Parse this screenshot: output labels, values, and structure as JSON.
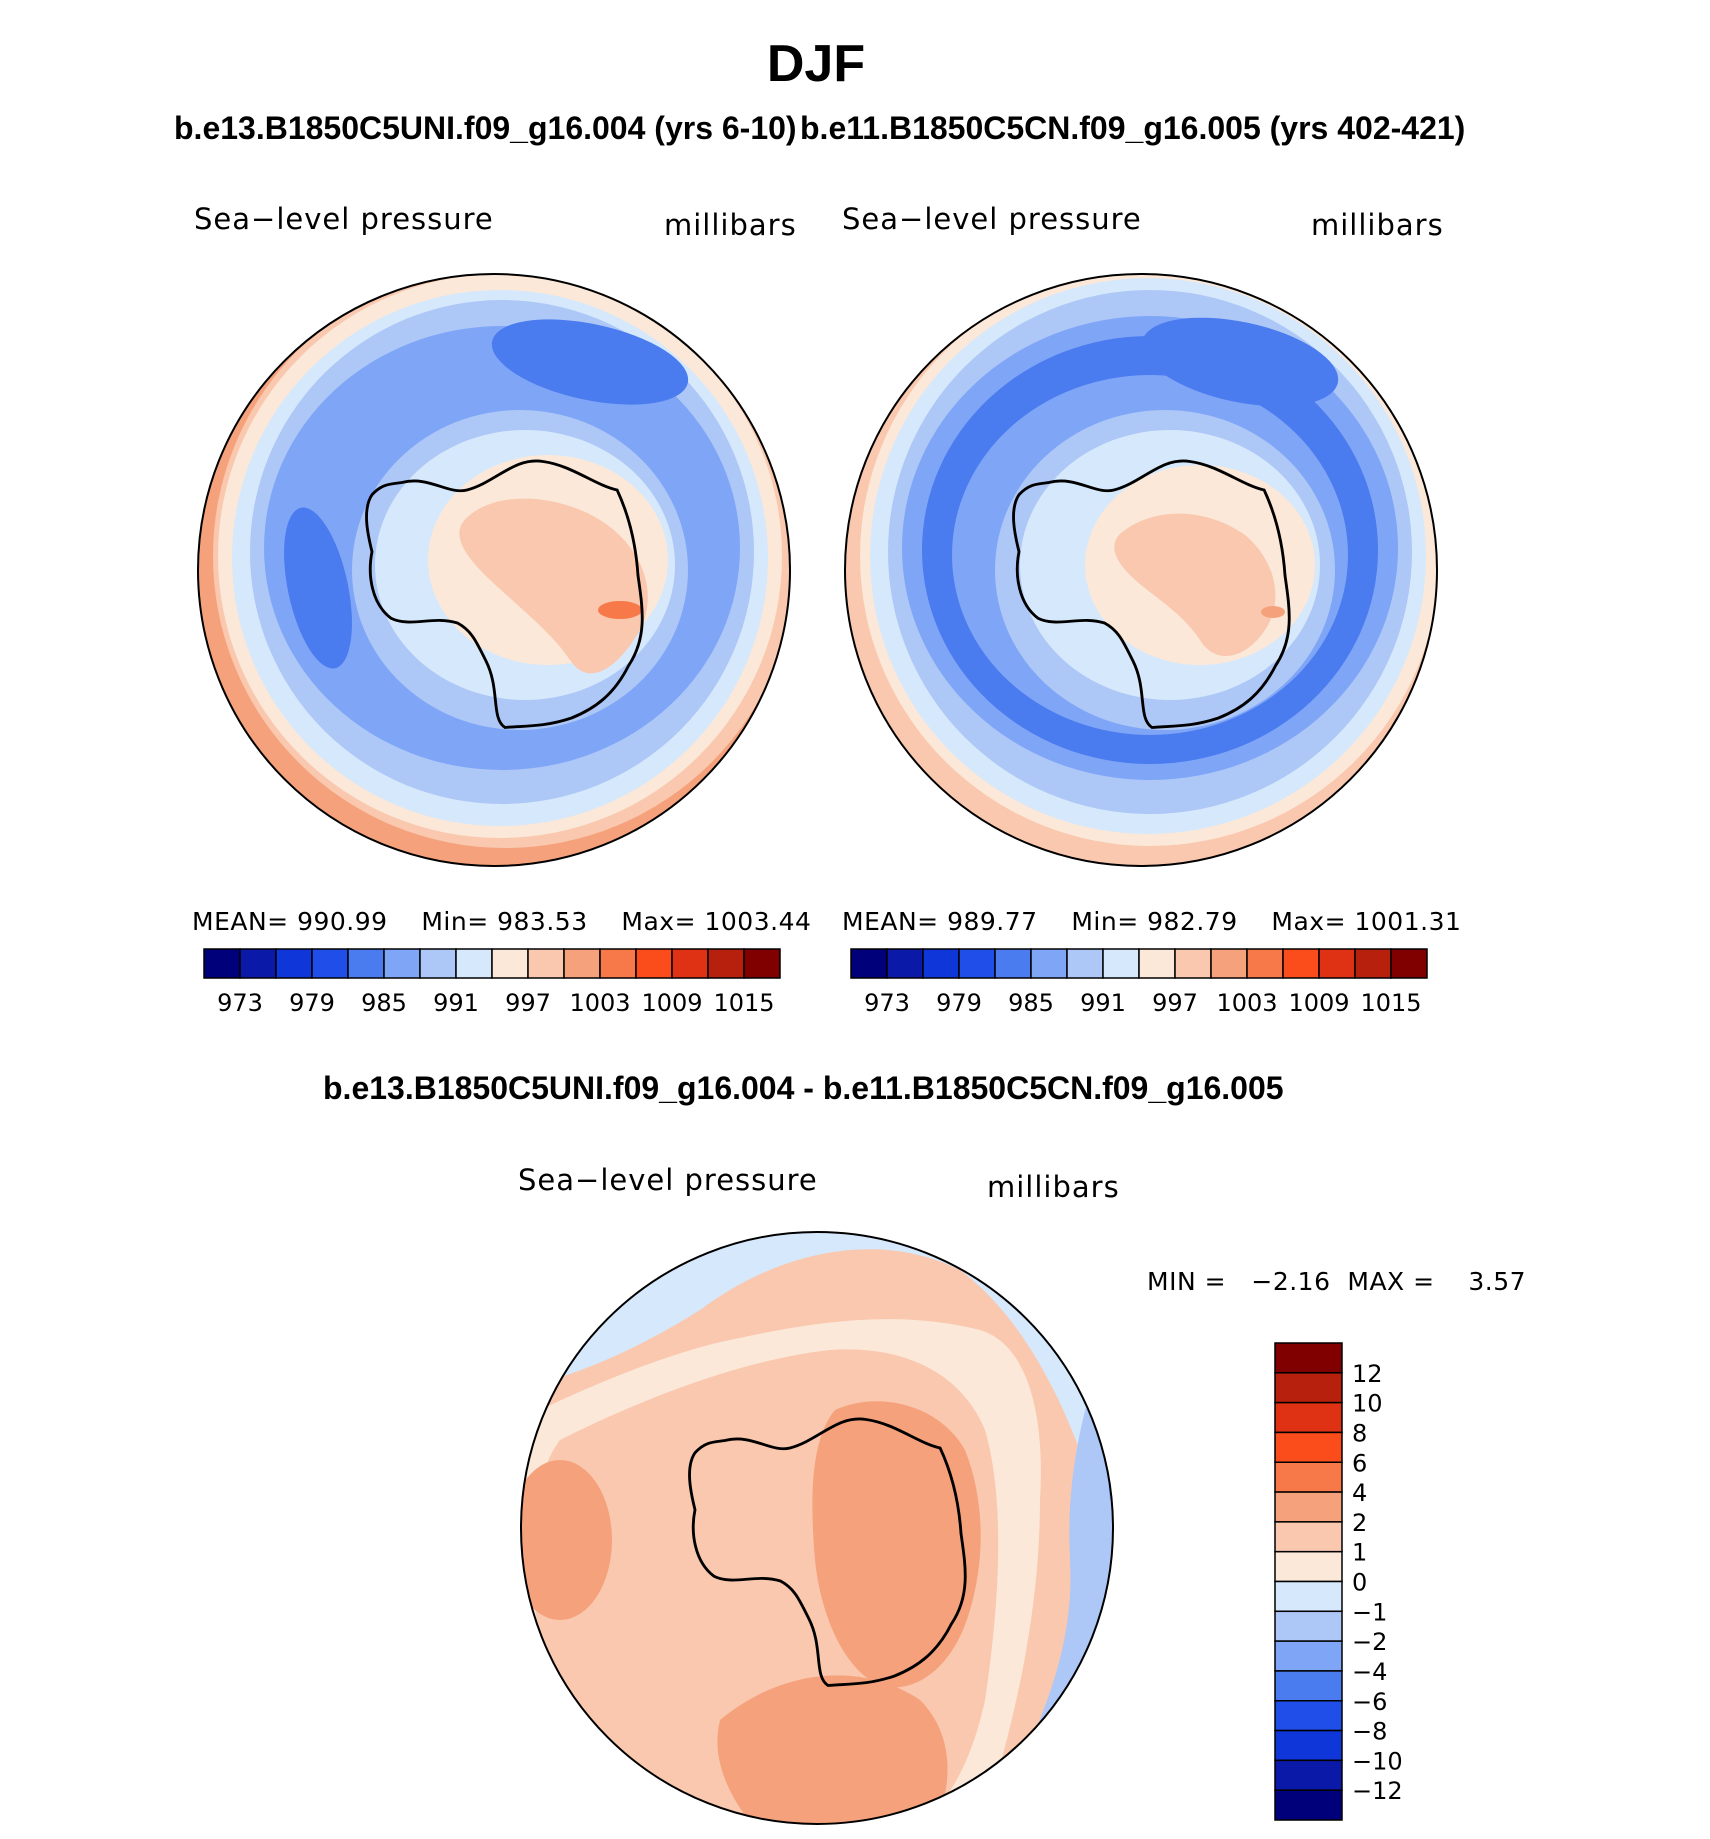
{
  "figure": {
    "season": "DJF",
    "diff_title": "b.e13.B1850C5UNI.f09_g16.004 - b.e11.B1850C5CN.f09_g16.005"
  },
  "panels": [
    {
      "title": "b.e13.B1850C5UNI.f09_g16.004 (yrs 6-10)",
      "variable": "Sea−level  pressure",
      "units": "millibars",
      "stats": {
        "mean_label": "MEAN=",
        "mean": "990.99",
        "min_label": "Min=",
        "min": "983.53",
        "max_label": "Max=",
        "max": "1003.44"
      }
    },
    {
      "title": "b.e11.B1850C5CN.f09_g16.005 (yrs 402-421)",
      "variable": "Sea−level  pressure",
      "units": "millibars",
      "stats": {
        "mean_label": "MEAN=",
        "mean": "989.77",
        "min_label": "Min=",
        "min": "982.79",
        "max_label": "Max=",
        "max": "1001.31"
      }
    },
    {
      "variable": "Sea−level  pressure",
      "units": "millibars",
      "minmax_text": "MIN =   −2.16  MAX =    3.57"
    }
  ],
  "colorbar_main": {
    "colors": [
      "#00007a",
      "#0a19a8",
      "#0e36d8",
      "#1f4fe8",
      "#4a7bef",
      "#7fa5f7",
      "#adc7f7",
      "#d6e8fb",
      "#fbe8d8",
      "#f9c8ae",
      "#f5a27c",
      "#f77848",
      "#fb4c1c",
      "#df3214",
      "#b8200e",
      "#800000"
    ],
    "labels": [
      "973",
      "979",
      "985",
      "991",
      "997",
      "1003",
      "1009",
      "1015"
    ]
  },
  "colorbar_diff": {
    "colors": [
      "#800000",
      "#b8200e",
      "#df3214",
      "#fb4c1c",
      "#f77848",
      "#f5a27c",
      "#f9c8ae",
      "#fbe8d8",
      "#d6e8fb",
      "#adc7f7",
      "#7fa5f7",
      "#4a7bef",
      "#1f4fe8",
      "#0e36d8",
      "#0a19a8",
      "#00007a"
    ],
    "labels": [
      "12",
      "10",
      "8",
      "6",
      "4",
      "2",
      "1",
      "0",
      "−1",
      "−2",
      "−4",
      "−6",
      "−8",
      "−10",
      "−12"
    ]
  }
}
